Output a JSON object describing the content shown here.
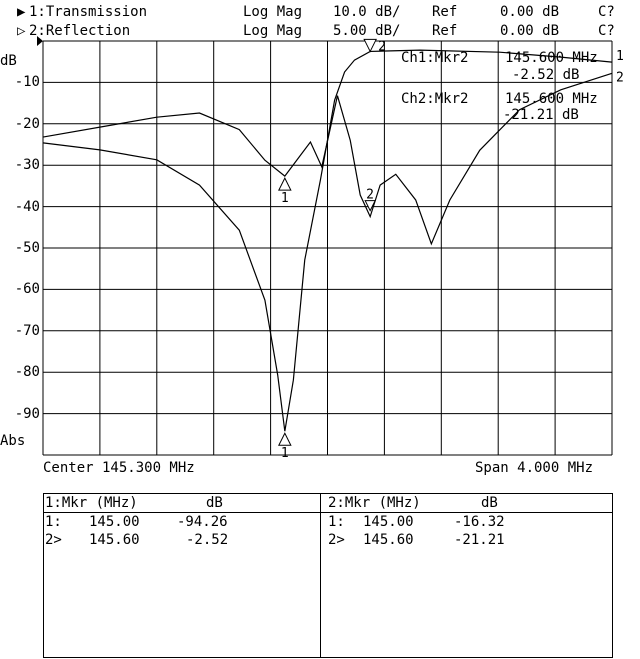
{
  "header": {
    "ch1": {
      "indicator": "▶",
      "label": "1:Transmission",
      "format": "Log Mag",
      "scale": "10.0 dB/",
      "ref_label": "Ref",
      "ref_value": "0.00 dB",
      "status": "C?"
    },
    "ch2": {
      "indicator": "▷",
      "label": "2:Reflection",
      "format": "Log Mag",
      "scale": "5.00 dB/",
      "ref_label": "Ref",
      "ref_value": "0.00 dB",
      "status": "C?"
    }
  },
  "marker_readout": {
    "ch1": {
      "label": "Ch1:Mkr2",
      "freq": "145.600 MHz",
      "value": "-2.52 dB"
    },
    "ch2": {
      "label": "Ch2:Mkr2",
      "freq": "145.600 MHz",
      "value": "-21.21 dB"
    }
  },
  "footer": {
    "center": "Center 145.300 MHz",
    "span": "Span 4.000 MHz"
  },
  "table": {
    "ch1": {
      "header_mkr": "1:Mkr (MHz)",
      "header_unit": "dB",
      "rows": [
        {
          "id": "1:",
          "freq": "145.00",
          "value": "-94.26"
        },
        {
          "id": "2>",
          "freq": "145.60",
          "value": "-2.52"
        }
      ]
    },
    "ch2": {
      "header_mkr": "2:Mkr (MHz)",
      "header_unit": "dB",
      "rows": [
        {
          "id": "1:",
          "freq": "145.00",
          "value": "-16.32"
        },
        {
          "id": "2>",
          "freq": "145.60",
          "value": "-21.21"
        }
      ]
    }
  },
  "chart_data": {
    "type": "line",
    "xlim": [
      143.3,
      147.3
    ],
    "x_unit": "MHz",
    "ylabel": "dB",
    "y_tick_labels": [
      "dB",
      "-10",
      "-20",
      "-30",
      "-40",
      "-50",
      "-60",
      "-70",
      "-80",
      "-90",
      "Abs"
    ],
    "grid": true,
    "series": [
      {
        "name": "1:Transmission",
        "ylim": [
          -100,
          0
        ],
        "end_label": "1",
        "x": [
          143.3,
          143.7,
          144.1,
          144.4,
          144.68,
          144.86,
          144.95,
          145.0,
          145.06,
          145.14,
          145.25,
          145.35,
          145.42,
          145.49,
          145.6,
          145.95,
          146.51,
          146.94,
          147.3
        ],
        "y": [
          -24.6,
          -26.3,
          -28.7,
          -34.8,
          -45.7,
          -62.6,
          -80.7,
          -94.26,
          -81.9,
          -52.9,
          -33.6,
          -14.3,
          -7.5,
          -4.6,
          -2.52,
          -2.2,
          -2.7,
          -3.9,
          -5.1
        ],
        "markers": [
          {
            "label": "1",
            "x": 145.0,
            "y": -94.26
          },
          {
            "label": "2",
            "x": 145.6,
            "y": -2.52
          }
        ]
      },
      {
        "name": "2:Reflection",
        "ylim": [
          -50,
          0
        ],
        "end_label": "2",
        "x": [
          143.3,
          143.7,
          144.1,
          144.4,
          144.68,
          144.86,
          145.0,
          145.11,
          145.18,
          145.26,
          145.37,
          145.46,
          145.53,
          145.6,
          145.67,
          145.78,
          145.92,
          146.03,
          146.16,
          146.37,
          146.65,
          146.94,
          147.3
        ],
        "y": [
          -11.6,
          -10.4,
          -9.2,
          -8.7,
          -10.7,
          -14.4,
          -16.32,
          -13.8,
          -12.2,
          -15.2,
          -6.6,
          -12.0,
          -18.6,
          -21.21,
          -17.4,
          -16.1,
          -19.2,
          -24.5,
          -19.2,
          -13.2,
          -8.3,
          -5.9,
          -3.9
        ],
        "markers": [
          {
            "label": "1",
            "x": 145.0,
            "y": -16.32
          },
          {
            "label": "2",
            "x": 145.6,
            "y": -21.21
          }
        ]
      }
    ]
  }
}
